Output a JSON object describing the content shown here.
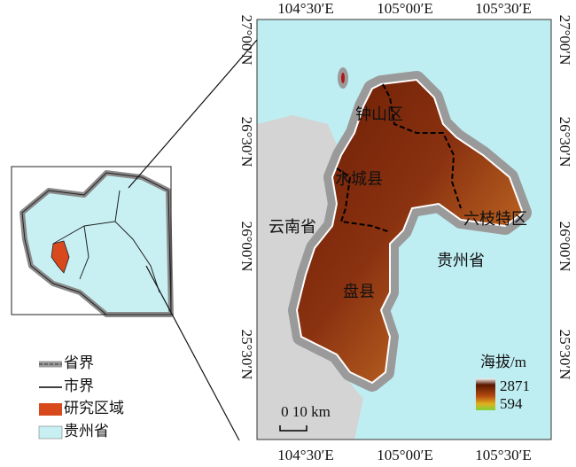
{
  "map": {
    "top_axis": [
      "104°30′E",
      "105°00′E",
      "105°30′E"
    ],
    "bottom_axis": [
      "104°30′E",
      "105°00′E",
      "105°30′E"
    ],
    "left_axis": [
      "27°00′N",
      "26°30′N",
      "26°00′N",
      "25°30′N"
    ],
    "right_axis": [
      "27°00′N",
      "26°30′N",
      "26°00′N",
      "25°30′N"
    ],
    "places": [
      "钟山区",
      "水城县",
      "云南省",
      "六枝特区",
      "贵州省",
      "盘县"
    ],
    "elevation_legend": {
      "title": "海拔/m",
      "max": 2871,
      "min": 594
    },
    "scale_bar": "0 10 km",
    "legend": [
      "省界",
      "市界",
      "研究区域",
      "贵州省"
    ]
  }
}
